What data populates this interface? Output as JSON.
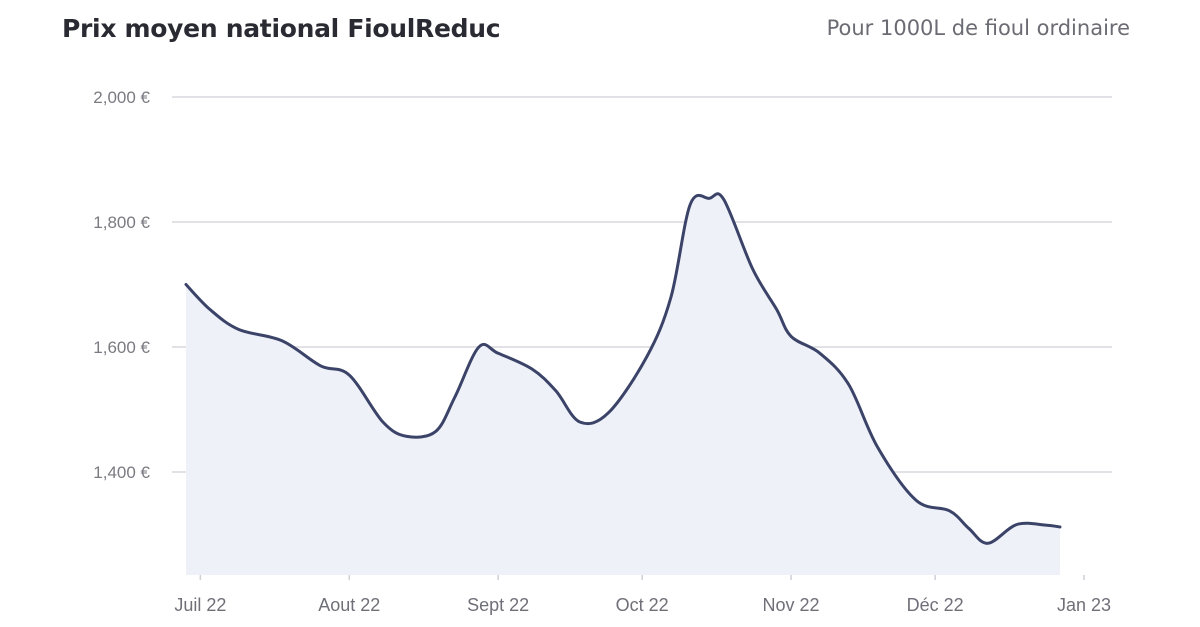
{
  "header": {
    "title": "Prix moyen national FioulReduc",
    "subtitle": "Pour 1000L de fioul ordinaire"
  },
  "colors": {
    "line": "#3b4468",
    "fill": "#eff1f9",
    "grid": "#e2e2e6"
  },
  "chart_data": {
    "type": "area",
    "title": "Prix moyen national FioulReduc",
    "subtitle": "Pour 1000L de fioul ordinaire",
    "xlabel": "",
    "ylabel": "",
    "ylim": [
      1240,
      2000
    ],
    "grid": true,
    "yticks": [
      {
        "value": 2000,
        "label": "2,000 €"
      },
      {
        "value": 1800,
        "label": "1,800 €"
      },
      {
        "value": 1600,
        "label": "1,600 €"
      },
      {
        "value": 1400,
        "label": "1,400 €"
      }
    ],
    "xticks": [
      {
        "x": "2022-07-01",
        "label": "Juil 22"
      },
      {
        "x": "2022-08-01",
        "label": "Aout 22"
      },
      {
        "x": "2022-09-01",
        "label": "Sept 22"
      },
      {
        "x": "2022-10-01",
        "label": "Oct 22"
      },
      {
        "x": "2022-11-01",
        "label": "Nov 22"
      },
      {
        "x": "2022-12-01",
        "label": "Déc 22"
      },
      {
        "x": "2023-01-01",
        "label": "Jan 23"
      }
    ],
    "x_range": [
      "2022-06-28",
      "2023-01-06"
    ],
    "series": [
      {
        "values": [
          {
            "x": "2022-06-28",
            "y": 1700
          },
          {
            "x": "2022-07-03",
            "y": 1660
          },
          {
            "x": "2022-07-09",
            "y": 1628
          },
          {
            "x": "2022-07-18",
            "y": 1610
          },
          {
            "x": "2022-07-26",
            "y": 1570
          },
          {
            "x": "2022-08-01",
            "y": 1555
          },
          {
            "x": "2022-08-08",
            "y": 1480
          },
          {
            "x": "2022-08-13",
            "y": 1457
          },
          {
            "x": "2022-08-19",
            "y": 1465
          },
          {
            "x": "2022-08-23",
            "y": 1520
          },
          {
            "x": "2022-08-28",
            "y": 1600
          },
          {
            "x": "2022-09-01",
            "y": 1590
          },
          {
            "x": "2022-09-08",
            "y": 1565
          },
          {
            "x": "2022-09-13",
            "y": 1530
          },
          {
            "x": "2022-09-18",
            "y": 1480
          },
          {
            "x": "2022-09-24",
            "y": 1495
          },
          {
            "x": "2022-10-02",
            "y": 1585
          },
          {
            "x": "2022-10-07",
            "y": 1680
          },
          {
            "x": "2022-10-11",
            "y": 1828
          },
          {
            "x": "2022-10-15",
            "y": 1838
          },
          {
            "x": "2022-10-18",
            "y": 1836
          },
          {
            "x": "2022-10-24",
            "y": 1725
          },
          {
            "x": "2022-10-29",
            "y": 1660
          },
          {
            "x": "2022-11-01",
            "y": 1617
          },
          {
            "x": "2022-11-07",
            "y": 1590
          },
          {
            "x": "2022-11-13",
            "y": 1540
          },
          {
            "x": "2022-11-19",
            "y": 1440
          },
          {
            "x": "2022-11-27",
            "y": 1355
          },
          {
            "x": "2022-12-04",
            "y": 1338
          },
          {
            "x": "2022-12-08",
            "y": 1310
          },
          {
            "x": "2022-12-12",
            "y": 1286
          },
          {
            "x": "2022-12-18",
            "y": 1316
          },
          {
            "x": "2022-12-24",
            "y": 1315
          },
          {
            "x": "2022-12-27",
            "y": 1312
          }
        ]
      }
    ]
  }
}
